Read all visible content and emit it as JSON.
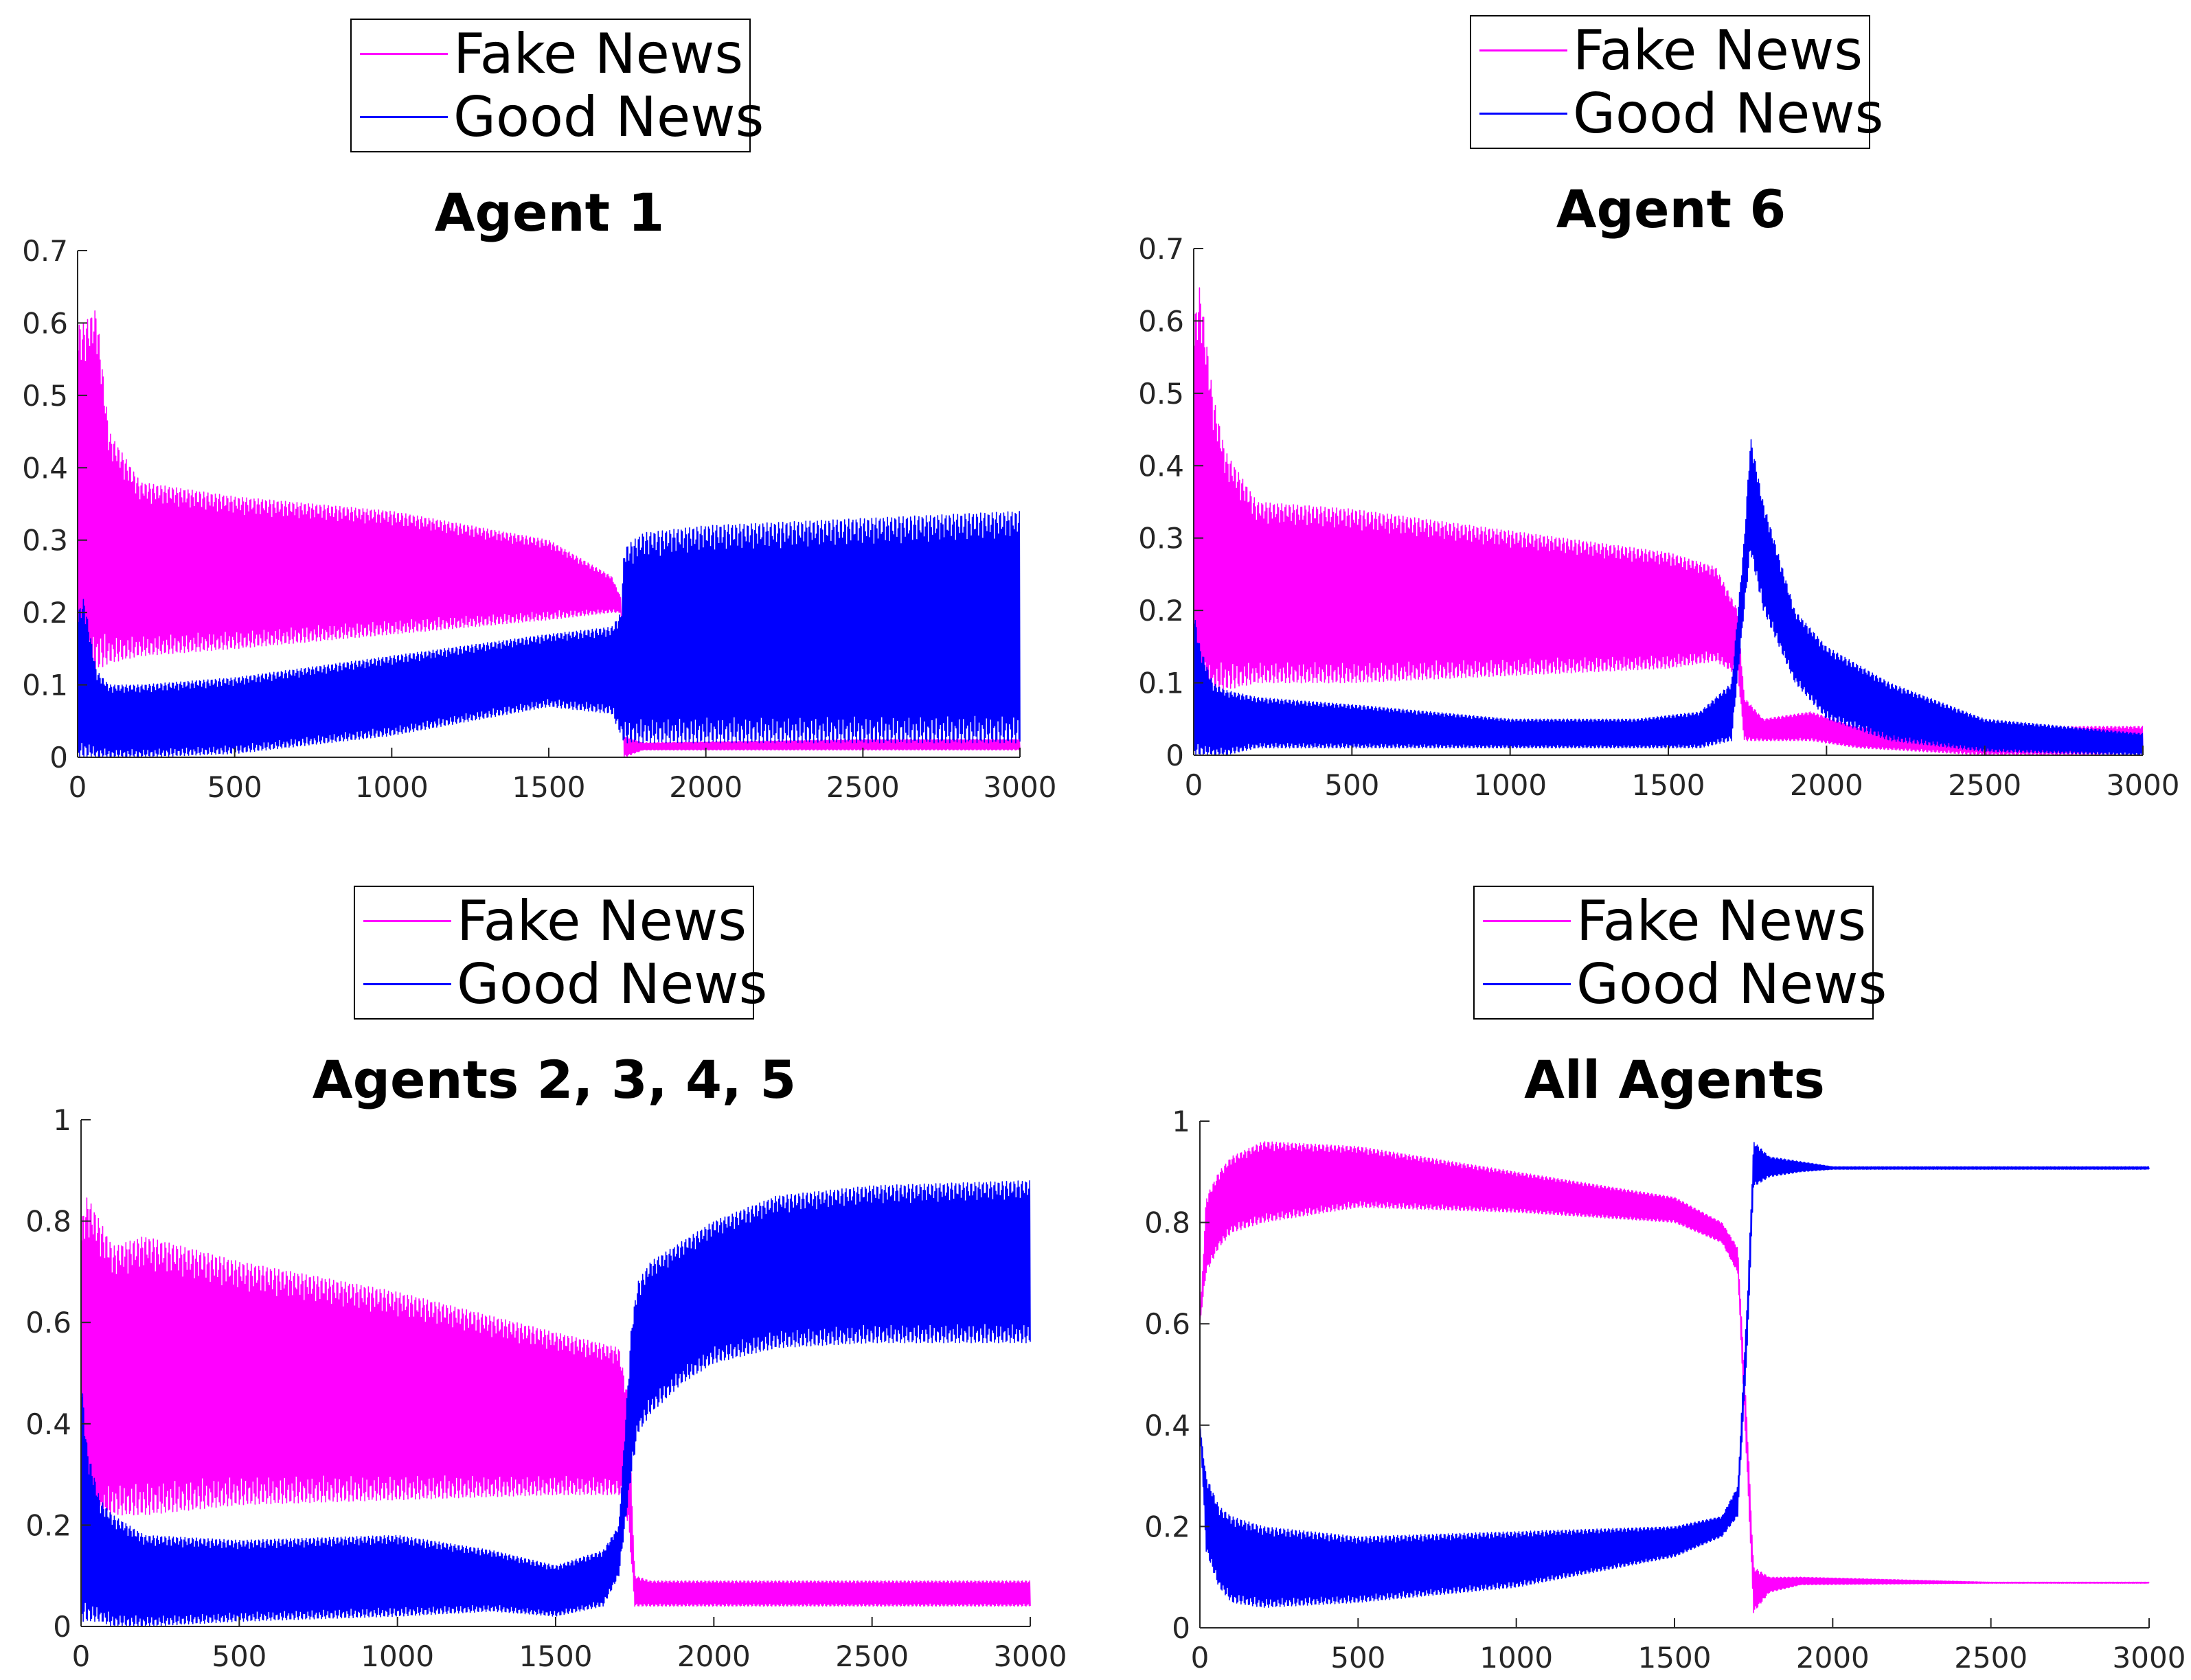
{
  "colors": {
    "fake": "#ff00ff",
    "good": "#0000ff",
    "axis": "#262626"
  },
  "legend": {
    "fake_label": "Fake News",
    "good_label": "Good News"
  },
  "chart_data": [
    {
      "type": "line",
      "title": "Agent 1",
      "xlim": [
        0,
        3000
      ],
      "ylim": [
        0,
        0.7
      ],
      "xticks": [
        "0",
        "500",
        "1000",
        "1500",
        "2000",
        "2500",
        "3000"
      ],
      "yticks": [
        "0",
        "0.1",
        "0.2",
        "0.3",
        "0.4",
        "0.5",
        "0.6",
        "0.7"
      ],
      "legend_position": "above-title",
      "series": [
        {
          "name": "Fake News",
          "color": "#ff00ff",
          "envelope": {
            "x": [
              0,
              20,
              60,
              100,
              200,
              500,
              1000,
              1500,
              1700,
              1730,
              1740,
              1800,
              2500,
              3000
            ],
            "upper": [
              0.6,
              0.6,
              0.62,
              0.45,
              0.38,
              0.36,
              0.34,
              0.3,
              0.25,
              0.22,
              0.03,
              0.02,
              0.025,
              0.025
            ],
            "lower": [
              0.05,
              0.1,
              0.12,
              0.13,
              0.14,
              0.15,
              0.17,
              0.19,
              0.2,
              0.2,
              0.0,
              0.01,
              0.01,
              0.01
            ]
          }
        },
        {
          "name": "Good News",
          "color": "#0000ff",
          "envelope": {
            "x": [
              0,
              20,
              60,
              100,
              200,
              500,
              1000,
              1500,
              1700,
              1730,
              1740,
              1800,
              2000,
              2500,
              3000
            ],
            "upper": [
              0.2,
              0.22,
              0.12,
              0.1,
              0.1,
              0.11,
              0.14,
              0.17,
              0.18,
              0.2,
              0.29,
              0.31,
              0.32,
              0.33,
              0.34
            ],
            "lower": [
              0.0,
              0.0,
              0.0,
              0.0,
              0.0,
              0.005,
              0.03,
              0.07,
              0.06,
              0.03,
              0.02,
              0.02,
              0.02,
              0.02,
              0.02
            ]
          }
        }
      ]
    },
    {
      "type": "line",
      "title": "Agent 6",
      "xlim": [
        0,
        3000
      ],
      "ylim": [
        0,
        0.7
      ],
      "xticks": [
        "0",
        "500",
        "1000",
        "1500",
        "2000",
        "2500",
        "3000"
      ],
      "yticks": [
        "0",
        "0.1",
        "0.2",
        "0.3",
        "0.4",
        "0.5",
        "0.6",
        "0.7"
      ],
      "legend_position": "above-title",
      "series": [
        {
          "name": "Fake News",
          "color": "#ff00ff",
          "envelope": {
            "x": [
              0,
              20,
              60,
              100,
              200,
              500,
              1000,
              1500,
              1650,
              1720,
              1740,
              1800,
              1950,
              2100,
              2500,
              3000
            ],
            "upper": [
              0.6,
              0.65,
              0.5,
              0.42,
              0.35,
              0.34,
              0.31,
              0.28,
              0.26,
              0.2,
              0.08,
              0.05,
              0.06,
              0.04,
              0.04,
              0.04
            ],
            "lower": [
              0.05,
              0.07,
              0.08,
              0.09,
              0.1,
              0.1,
              0.11,
              0.12,
              0.13,
              0.11,
              0.02,
              0.02,
              0.02,
              0.01,
              0.0,
              0.0
            ]
          }
        },
        {
          "name": "Good News",
          "color": "#0000ff",
          "envelope": {
            "x": [
              0,
              20,
              60,
              100,
              200,
              500,
              1000,
              1400,
              1600,
              1700,
              1740,
              1760,
              1800,
              1900,
              2000,
              2200,
              2500,
              3000
            ],
            "upper": [
              0.2,
              0.15,
              0.1,
              0.09,
              0.08,
              0.07,
              0.05,
              0.05,
              0.06,
              0.1,
              0.3,
              0.44,
              0.35,
              0.2,
              0.15,
              0.1,
              0.05,
              0.03
            ],
            "lower": [
              0.0,
              0.0,
              0.0,
              0.0,
              0.01,
              0.01,
              0.01,
              0.01,
              0.01,
              0.02,
              0.2,
              0.28,
              0.2,
              0.1,
              0.05,
              0.02,
              0.005,
              0.0
            ]
          }
        }
      ]
    },
    {
      "type": "line",
      "title": "Agents 2, 3, 4, 5",
      "xlim": [
        0,
        3000
      ],
      "ylim": [
        0,
        1
      ],
      "xticks": [
        "0",
        "500",
        "1000",
        "1500",
        "2000",
        "2500",
        "3000"
      ],
      "yticks": [
        "0",
        "0.2",
        "0.4",
        "0.6",
        "0.8",
        "1"
      ],
      "legend_position": "above-title",
      "series": [
        {
          "name": "Fake News",
          "color": "#ff00ff",
          "envelope": {
            "x": [
              0,
              20,
              60,
              100,
              200,
              500,
              1000,
              1500,
              1700,
              1730,
              1750,
              1800,
              2500,
              3000
            ],
            "upper": [
              0.8,
              0.85,
              0.8,
              0.75,
              0.77,
              0.72,
              0.66,
              0.58,
              0.55,
              0.45,
              0.1,
              0.09,
              0.09,
              0.09
            ],
            "lower": [
              0.2,
              0.15,
              0.2,
              0.22,
              0.22,
              0.24,
              0.25,
              0.26,
              0.26,
              0.2,
              0.04,
              0.04,
              0.04,
              0.04
            ]
          }
        },
        {
          "name": "Good News",
          "color": "#0000ff",
          "envelope": {
            "x": [
              0,
              20,
              60,
              100,
              200,
              500,
              1000,
              1300,
              1500,
              1650,
              1700,
              1740,
              1760,
              1800,
              1900,
              2000,
              2200,
              2500,
              3000
            ],
            "upper": [
              0.5,
              0.35,
              0.25,
              0.22,
              0.18,
              0.17,
              0.18,
              0.15,
              0.12,
              0.15,
              0.2,
              0.6,
              0.68,
              0.72,
              0.76,
              0.8,
              0.85,
              0.87,
              0.88
            ],
            "lower": [
              0.01,
              0.01,
              0.01,
              0.0,
              0.0,
              0.01,
              0.02,
              0.03,
              0.02,
              0.04,
              0.1,
              0.3,
              0.38,
              0.42,
              0.48,
              0.52,
              0.55,
              0.56,
              0.56
            ]
          }
        }
      ]
    },
    {
      "type": "line",
      "title": "All Agents",
      "xlim": [
        0,
        3000
      ],
      "ylim": [
        0,
        1
      ],
      "xticks": [
        "0",
        "500",
        "1000",
        "1500",
        "2000",
        "2500",
        "3000"
      ],
      "yticks": [
        "0",
        "0.2",
        "0.4",
        "0.6",
        "0.8",
        "1"
      ],
      "legend_position": "above-title",
      "series": [
        {
          "name": "Fake News",
          "color": "#ff00ff",
          "envelope": {
            "x": [
              0,
              20,
              60,
              100,
              200,
              500,
              1000,
              1500,
              1650,
              1700,
              1730,
              1750,
              1800,
              1900,
              2500,
              3000
            ],
            "upper": [
              0.6,
              0.85,
              0.9,
              0.93,
              0.96,
              0.95,
              0.9,
              0.85,
              0.8,
              0.75,
              0.4,
              0.12,
              0.1,
              0.1,
              0.09,
              0.09
            ],
            "lower": [
              0.6,
              0.7,
              0.75,
              0.78,
              0.8,
              0.83,
              0.82,
              0.8,
              0.76,
              0.7,
              0.3,
              0.03,
              0.07,
              0.085,
              0.088,
              0.088
            ]
          }
        },
        {
          "name": "Good News",
          "color": "#0000ff",
          "envelope": {
            "x": [
              0,
              20,
              60,
              100,
              200,
              500,
              1000,
              1500,
              1650,
              1700,
              1730,
              1750,
              1800,
              1900,
              2000,
              2500,
              3000
            ],
            "upper": [
              0.4,
              0.3,
              0.24,
              0.22,
              0.2,
              0.18,
              0.19,
              0.2,
              0.22,
              0.28,
              0.65,
              0.96,
              0.93,
              0.92,
              0.91,
              0.91,
              0.91
            ],
            "lower": [
              0.4,
              0.15,
              0.08,
              0.05,
              0.04,
              0.05,
              0.08,
              0.14,
              0.18,
              0.22,
              0.55,
              0.87,
              0.89,
              0.9,
              0.905,
              0.905,
              0.905
            ]
          }
        }
      ]
    }
  ]
}
